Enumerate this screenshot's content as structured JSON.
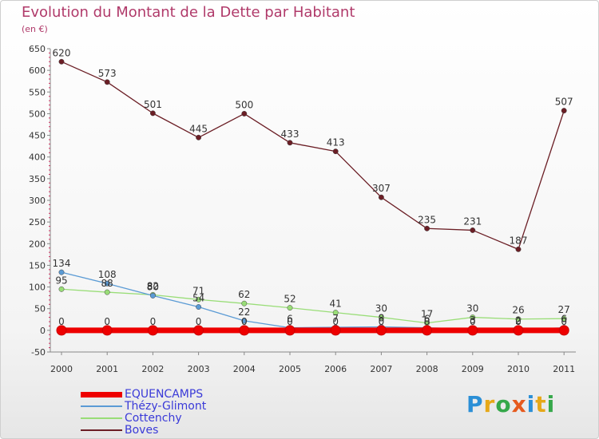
{
  "title": "Evolution du Montant de la Dette par Habitant",
  "subtitle": "(en €)",
  "logo": {
    "text": "Proxiti",
    "letter_colors": [
      "#2b8fd6",
      "#e6a818",
      "#35a84a",
      "#e65a1e",
      "#2b8fd6",
      "#e6a818",
      "#35a84a"
    ]
  },
  "chart_data": {
    "type": "line",
    "title": "Evolution du Montant de la Dette par Habitant",
    "ylabel": "(en €)",
    "xlabel": "",
    "x": [
      "2000",
      "2001",
      "2002",
      "2003",
      "2004",
      "2005",
      "2006",
      "2007",
      "2008",
      "2009",
      "2010",
      "2011"
    ],
    "ylim": [
      -50,
      650
    ],
    "yticks": [
      -50,
      0,
      50,
      100,
      150,
      200,
      250,
      300,
      350,
      400,
      450,
      500,
      550,
      600,
      650
    ],
    "grid": false,
    "legend_position": "bottom-left",
    "series": [
      {
        "name": "EQUENCAMPS",
        "color": "#ee0000",
        "values": [
          0,
          0,
          0,
          0,
          0,
          0,
          0,
          0,
          0,
          0,
          0,
          0
        ]
      },
      {
        "name": "Thézy-Glimont",
        "color": "#5b9bd5",
        "values": [
          134,
          108,
          80,
          54,
          22,
          6,
          7,
          8,
          6,
          3,
          2,
          6
        ]
      },
      {
        "name": "Cottenchy",
        "color": "#99dd77",
        "values": [
          95,
          88,
          82,
          71,
          62,
          52,
          41,
          30,
          17,
          30,
          26,
          27
        ]
      },
      {
        "name": "Boves",
        "color": "#6b1e25",
        "values": [
          620,
          573,
          501,
          445,
          500,
          433,
          413,
          307,
          235,
          231,
          187,
          507
        ]
      }
    ]
  }
}
